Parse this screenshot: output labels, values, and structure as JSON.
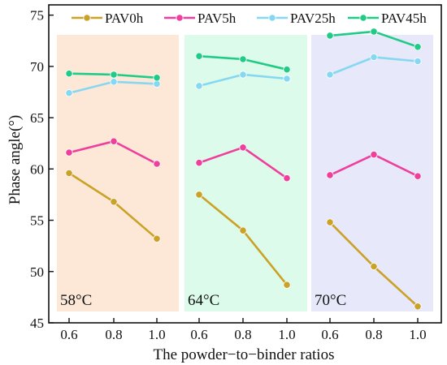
{
  "chart_data": {
    "type": "line",
    "xlabel": "The powder−to−binder ratios",
    "ylabel": "Phase angle(°)",
    "ylim": [
      45,
      76
    ],
    "yticks": [
      45,
      50,
      55,
      60,
      65,
      70,
      75
    ],
    "categories": [
      "0.6",
      "0.8",
      "1.0"
    ],
    "legend_position": "top",
    "grid": false,
    "panels": [
      {
        "label": "58°C",
        "background": "#fde8d8",
        "series": [
          {
            "name": "PAV0h",
            "values": [
              59.6,
              56.8,
              53.2
            ]
          },
          {
            "name": "PAV5h",
            "values": [
              61.6,
              62.7,
              60.5
            ]
          },
          {
            "name": "PAV25h",
            "values": [
              67.4,
              68.5,
              68.3
            ]
          },
          {
            "name": "PAV45h",
            "values": [
              69.3,
              69.2,
              68.9
            ]
          }
        ]
      },
      {
        "label": "64°C",
        "background": "#ddfbea",
        "series": [
          {
            "name": "PAV0h",
            "values": [
              57.5,
              54.0,
              48.7
            ]
          },
          {
            "name": "PAV5h",
            "values": [
              60.6,
              62.1,
              59.1
            ]
          },
          {
            "name": "PAV25h",
            "values": [
              68.1,
              69.2,
              68.8
            ]
          },
          {
            "name": "PAV45h",
            "values": [
              71.0,
              70.7,
              69.7
            ]
          }
        ]
      },
      {
        "label": "70°C",
        "background": "#e8e8fb",
        "series": [
          {
            "name": "PAV0h",
            "values": [
              54.8,
              50.5,
              46.6
            ]
          },
          {
            "name": "PAV5h",
            "values": [
              59.4,
              61.4,
              59.3
            ]
          },
          {
            "name": "PAV25h",
            "values": [
              69.2,
              70.9,
              70.5
            ]
          },
          {
            "name": "PAV45h",
            "values": [
              73.0,
              73.4,
              71.9
            ]
          }
        ]
      }
    ],
    "series_colors": {
      "PAV0h": "#c9a227",
      "PAV5h": "#ee3f9c",
      "PAV25h": "#86d8f2",
      "PAV45h": "#1fcb86"
    }
  }
}
